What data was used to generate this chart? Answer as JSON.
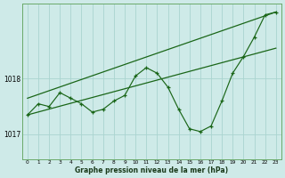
{
  "xlabel": "Graphe pression niveau de la mer (hPa)",
  "bg_color": "#ceeae8",
  "grid_color": "#aad4d0",
  "line_color": "#1a6618",
  "x_ticks": [
    0,
    1,
    2,
    3,
    4,
    5,
    6,
    7,
    8,
    9,
    10,
    11,
    12,
    13,
    14,
    15,
    16,
    17,
    18,
    19,
    20,
    21,
    22,
    23
  ],
  "ylim": [
    1016.55,
    1019.35
  ],
  "yticks": [
    1017,
    1018
  ],
  "main_x": [
    0,
    1,
    2,
    3,
    4,
    5,
    6,
    7,
    8,
    9,
    10,
    11,
    12,
    13,
    14,
    15,
    16,
    17,
    18,
    19,
    20,
    21,
    22,
    23
  ],
  "main_y": [
    1017.35,
    1017.55,
    1017.5,
    1017.75,
    1017.65,
    1017.55,
    1017.4,
    1017.45,
    1017.6,
    1017.7,
    1018.05,
    1018.2,
    1018.1,
    1017.85,
    1017.45,
    1017.1,
    1017.05,
    1017.15,
    1017.6,
    1018.1,
    1018.4,
    1018.75,
    1019.15,
    1019.2
  ],
  "upper_line_x": [
    0,
    23
  ],
  "upper_line_y": [
    1017.65,
    1019.2
  ],
  "lower_line_x": [
    0,
    23
  ],
  "lower_line_y": [
    1017.35,
    1018.55
  ]
}
